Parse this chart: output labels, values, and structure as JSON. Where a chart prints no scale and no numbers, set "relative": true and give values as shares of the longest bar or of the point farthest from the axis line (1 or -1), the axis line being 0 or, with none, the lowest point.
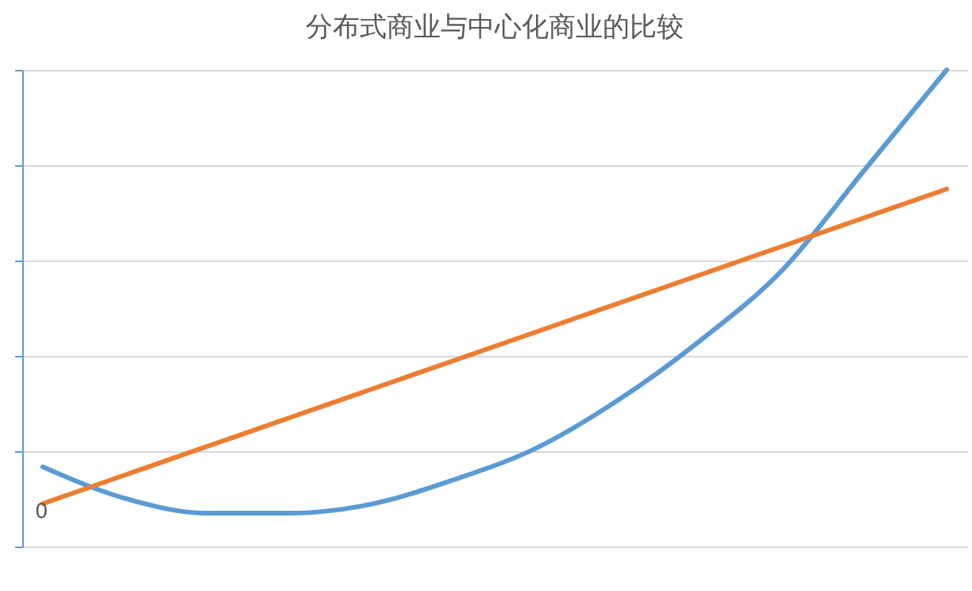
{
  "chart_data": {
    "type": "line",
    "title": "分布式商业与中心化商业的比较",
    "relative": true,
    "grid": "y",
    "categories": [
      null,
      null,
      null,
      null,
      null,
      null,
      null,
      null,
      null,
      null,
      null,
      null
    ],
    "series": [
      {
        "color": "#5b9bd5",
        "values": [
          0.167,
          0.101,
          0.07,
          0.07,
          0.089,
          0.14,
          0.206,
          0.307,
          0.432,
          0.58,
          0.79,
          1
        ]
      },
      {
        "color": "#ed7d31",
        "values": [
          0.09,
          0.15,
          0.21,
          0.27,
          0.33,
          0.39,
          0.45,
          0.51,
          0.57,
          0.63,
          0.69,
          0.75
        ]
      }
    ],
    "annotations": [
      "0"
    ]
  }
}
